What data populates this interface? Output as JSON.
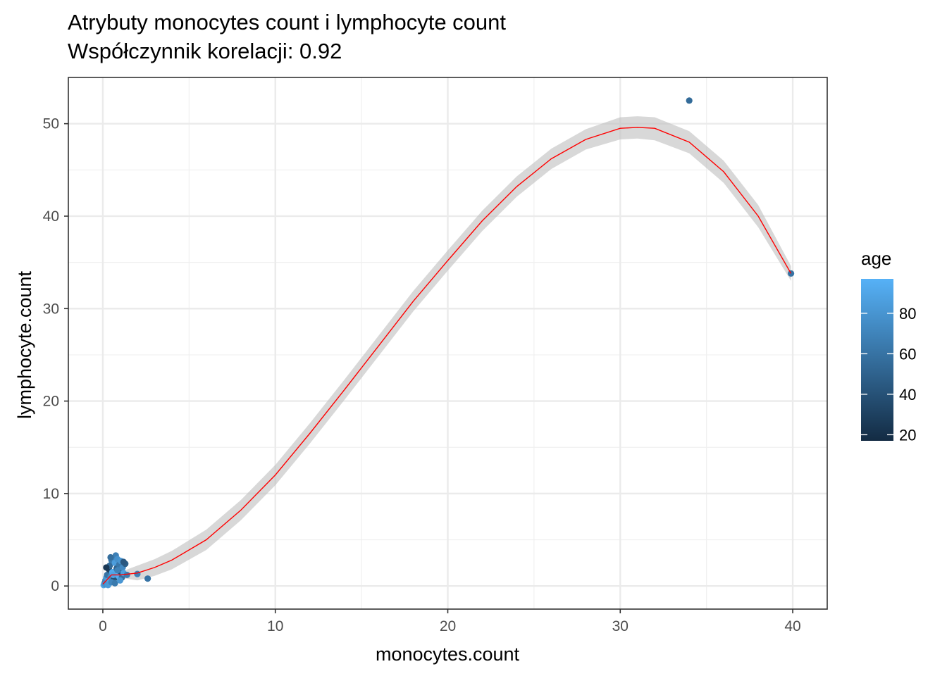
{
  "chart_data": {
    "type": "scatter",
    "title": "Atrybuty monocytes count i lymphocyte count",
    "subtitle": "Współczynnik korelacji: 0.92",
    "xlabel": "monocytes.count",
    "ylabel": "lymphocyte.count",
    "xlim": [
      -2,
      42
    ],
    "ylim": [
      -2.5,
      55
    ],
    "x_ticks": [
      0,
      10,
      20,
      30,
      40
    ],
    "y_ticks": [
      0,
      10,
      20,
      30,
      40,
      50
    ],
    "grid": true,
    "legend": {
      "title": "age",
      "position": "right",
      "type": "colorbar",
      "range": [
        17,
        97
      ],
      "ticks": [
        20,
        40,
        60,
        80
      ],
      "low_color": "#132B43",
      "high_color": "#56B1F7"
    },
    "points": [
      {
        "x": 0.1,
        "y": 0.3,
        "age": 45
      },
      {
        "x": 0.15,
        "y": 0.6,
        "age": 70
      },
      {
        "x": 0.2,
        "y": 0.9,
        "age": 82
      },
      {
        "x": 0.25,
        "y": 1.2,
        "age": 60
      },
      {
        "x": 0.3,
        "y": 0.5,
        "age": 88
      },
      {
        "x": 0.35,
        "y": 1.8,
        "age": 30
      },
      {
        "x": 0.4,
        "y": 2.2,
        "age": 55
      },
      {
        "x": 0.45,
        "y": 1.0,
        "age": 75
      },
      {
        "x": 0.5,
        "y": 2.8,
        "age": 65
      },
      {
        "x": 0.55,
        "y": 1.5,
        "age": 92
      },
      {
        "x": 0.6,
        "y": 3.0,
        "age": 72
      },
      {
        "x": 0.65,
        "y": 0.8,
        "age": 40
      },
      {
        "x": 0.7,
        "y": 2.5,
        "age": 85
      },
      {
        "x": 0.75,
        "y": 3.3,
        "age": 68
      },
      {
        "x": 0.8,
        "y": 1.9,
        "age": 50
      },
      {
        "x": 0.85,
        "y": 2.9,
        "age": 78
      },
      {
        "x": 0.9,
        "y": 1.1,
        "age": 95
      },
      {
        "x": 0.95,
        "y": 2.3,
        "age": 62
      },
      {
        "x": 1.0,
        "y": 1.6,
        "age": 35
      },
      {
        "x": 1.05,
        "y": 2.7,
        "age": 80
      },
      {
        "x": 1.1,
        "y": 0.9,
        "age": 58
      },
      {
        "x": 1.15,
        "y": 2.0,
        "age": 74
      },
      {
        "x": 1.2,
        "y": 1.4,
        "age": 86
      },
      {
        "x": 1.3,
        "y": 2.4,
        "age": 48
      },
      {
        "x": 1.4,
        "y": 1.2,
        "age": 66
      },
      {
        "x": 0.05,
        "y": 0.1,
        "age": 90
      },
      {
        "x": 0.12,
        "y": 0.2,
        "age": 77
      },
      {
        "x": 0.3,
        "y": 0.1,
        "age": 83
      },
      {
        "x": 0.5,
        "y": 0.4,
        "age": 71
      },
      {
        "x": 0.7,
        "y": 0.3,
        "age": 64
      },
      {
        "x": 0.2,
        "y": 2.0,
        "age": 25
      },
      {
        "x": 0.45,
        "y": 3.1,
        "age": 57
      },
      {
        "x": 0.6,
        "y": 1.2,
        "age": 89
      },
      {
        "x": 0.85,
        "y": 1.7,
        "age": 69
      },
      {
        "x": 1.0,
        "y": 0.6,
        "age": 81
      },
      {
        "x": 1.2,
        "y": 2.6,
        "age": 44
      },
      {
        "x": 2.0,
        "y": 1.3,
        "age": 68
      },
      {
        "x": 2.6,
        "y": 0.8,
        "age": 60
      },
      {
        "x": 34.0,
        "y": 52.5,
        "age": 55
      },
      {
        "x": 39.9,
        "y": 33.8,
        "age": 60
      }
    ],
    "smooth_line": {
      "color": "#FF0000",
      "band_color": "#BEBEBE",
      "x": [
        0.0,
        0.5,
        1.0,
        2.0,
        3.0,
        4.0,
        6.0,
        8.0,
        10.0,
        12.0,
        14.0,
        16.0,
        18.0,
        20.0,
        22.0,
        24.0,
        26.0,
        28.0,
        30.0,
        31.0,
        32.0,
        34.0,
        36.0,
        38.0,
        39.9
      ],
      "y": [
        0.2,
        1.2,
        1.2,
        1.4,
        2.0,
        2.8,
        5.0,
        8.2,
        12.0,
        16.5,
        21.2,
        26.0,
        30.8,
        35.2,
        39.5,
        43.2,
        46.2,
        48.3,
        49.5,
        49.6,
        49.5,
        48.0,
        44.8,
        40.0,
        33.8
      ],
      "lower": [
        0.0,
        0.9,
        0.9,
        0.6,
        1.1,
        1.8,
        3.9,
        7.1,
        10.9,
        15.4,
        20.1,
        24.9,
        29.7,
        34.1,
        38.4,
        42.1,
        45.1,
        47.2,
        48.3,
        48.4,
        48.2,
        46.8,
        43.6,
        38.8,
        33.0
      ],
      "upper": [
        0.4,
        1.5,
        1.5,
        2.2,
        2.9,
        3.8,
        6.1,
        9.3,
        13.1,
        17.6,
        22.3,
        27.1,
        31.9,
        36.3,
        40.6,
        44.3,
        47.3,
        49.4,
        50.7,
        50.8,
        50.7,
        49.2,
        46.0,
        41.2,
        34.6
      ]
    }
  }
}
